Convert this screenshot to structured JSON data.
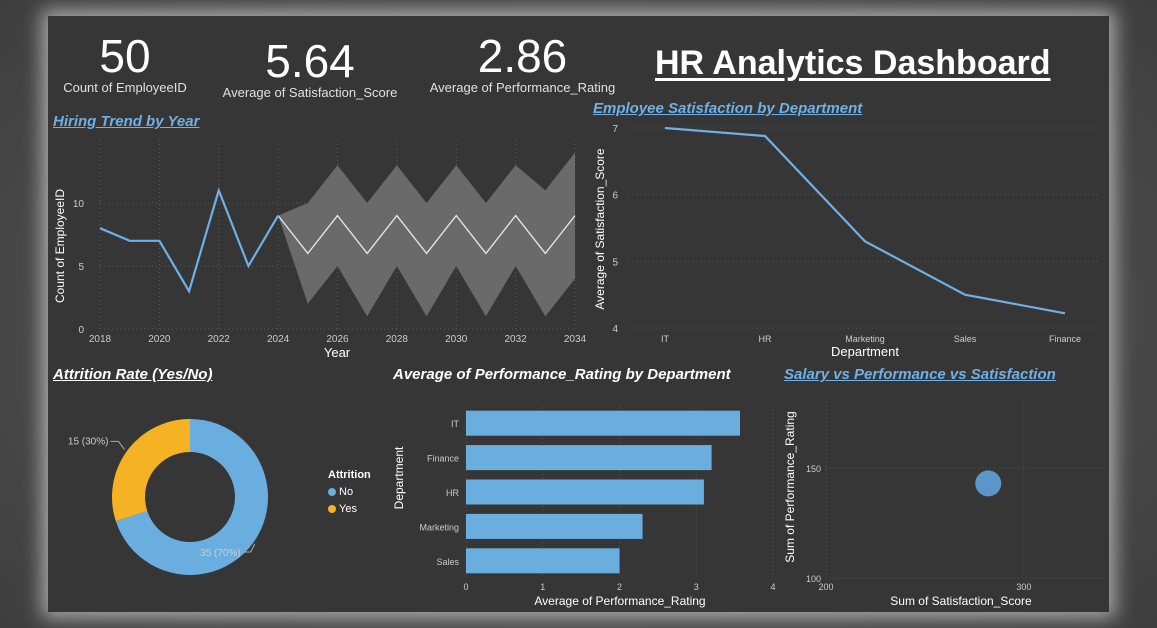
{
  "title": "HR Analytics Dashboard",
  "kpis": [
    {
      "value": "50",
      "label": "Count of EmployeeID"
    },
    {
      "value": "5.64",
      "label": "Average of Satisfaction_Score"
    },
    {
      "value": "2.86",
      "label": "Average of Performance_Rating"
    }
  ],
  "colors": {
    "accent": "#6fb0e6",
    "yes": "#f5b323",
    "no": "#6aaee0",
    "forecast_band": "#6a6a6a"
  },
  "chart_data": [
    {
      "type": "line",
      "title": "Hiring Trend by Year",
      "xlabel": "Year",
      "ylabel": "Count of EmployeeID",
      "x": [
        2018,
        2019,
        2020,
        2021,
        2022,
        2023,
        2024
      ],
      "values": [
        8,
        7,
        7,
        3,
        11,
        5,
        9
      ],
      "forecast": {
        "x": [
          2024,
          2025,
          2026,
          2027,
          2028,
          2029,
          2030,
          2031,
          2032,
          2033,
          2034
        ],
        "values": [
          9,
          6,
          9,
          6,
          9,
          6,
          9,
          6,
          9,
          6,
          9
        ],
        "upper": [
          9,
          10,
          13,
          10,
          13,
          10,
          13,
          10,
          13,
          11,
          14
        ],
        "lower": [
          9,
          2,
          5,
          1,
          5,
          1,
          5,
          1,
          5,
          1,
          4
        ]
      },
      "xticks": [
        "2018",
        "2020",
        "2022",
        "2024",
        "2026",
        "2028",
        "2030",
        "2032",
        "2034"
      ],
      "yticks": [
        "0",
        "5",
        "10"
      ],
      "xlim": [
        2018,
        2034
      ],
      "ylim": [
        0,
        15
      ]
    },
    {
      "type": "line",
      "title": "Employee Satisfaction by Department",
      "xlabel": "Department",
      "ylabel": "Average of Satisfaction_Score",
      "categories": [
        "IT",
        "HR",
        "Marketing",
        "Sales",
        "Finance"
      ],
      "values": [
        7.0,
        6.88,
        5.3,
        4.5,
        4.22
      ],
      "yticks": [
        "4",
        "5",
        "6",
        "7"
      ],
      "ylim": [
        4,
        7
      ]
    },
    {
      "type": "pie",
      "title": "Attrition Rate (Yes/No)",
      "legend_title": "Attrition",
      "slices": [
        {
          "name": "No",
          "value": 35,
          "label": "35 (70%)"
        },
        {
          "name": "Yes",
          "value": 15,
          "label": "15 (30%)"
        }
      ]
    },
    {
      "type": "bar",
      "title": "Average of Performance_Rating by Department",
      "xlabel": "Average of Performance_Rating",
      "ylabel": "Department",
      "categories": [
        "IT",
        "Finance",
        "HR",
        "Marketing",
        "Sales"
      ],
      "values": [
        3.57,
        3.2,
        3.1,
        2.3,
        2.0
      ],
      "xticks": [
        "0",
        "1",
        "2",
        "3",
        "4"
      ],
      "xlim": [
        0,
        4
      ]
    },
    {
      "type": "scatter",
      "title": "Salary vs Performance vs Satisfaction",
      "xlabel": "Sum of Satisfaction_Score",
      "ylabel": "Sum of Performance_Rating",
      "points": [
        {
          "x": 282,
          "y": 143
        }
      ],
      "xticks": [
        "200",
        "300"
      ],
      "yticks": [
        "100",
        "150"
      ],
      "xlim": [
        200,
        340
      ],
      "ylim": [
        100,
        180
      ]
    }
  ]
}
